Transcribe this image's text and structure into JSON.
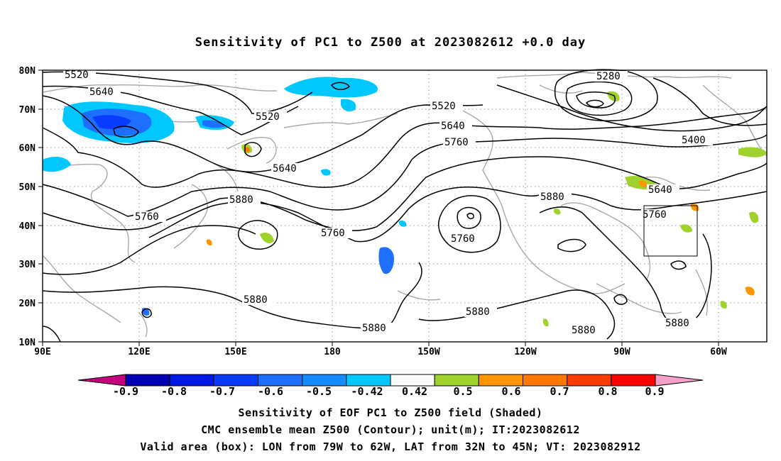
{
  "title": "Sensitivity of PC1 to Z500 at 2023082612 +0.0 day",
  "map": {
    "lat_labels": [
      "80N",
      "70N",
      "60N",
      "50N",
      "40N",
      "30N",
      "20N",
      "10N"
    ],
    "lon_labels": [
      "90E",
      "120E",
      "150E",
      "180",
      "150W",
      "120W",
      "90W",
      "60W"
    ],
    "contour_labels": [
      {
        "text": "5520",
        "id": "c1"
      },
      {
        "text": "5640",
        "id": "c2"
      },
      {
        "text": "5520",
        "id": "c3"
      },
      {
        "text": "5640",
        "id": "c4"
      },
      {
        "text": "5760",
        "id": "c5"
      },
      {
        "text": "5880",
        "id": "c6"
      },
      {
        "text": "5760",
        "id": "c7"
      },
      {
        "text": "5880",
        "id": "c8"
      },
      {
        "text": "5880",
        "id": "c9"
      },
      {
        "text": "5520",
        "id": "c10"
      },
      {
        "text": "5640",
        "id": "c11"
      },
      {
        "text": "5760",
        "id": "c12"
      },
      {
        "text": "5760",
        "id": "c13"
      },
      {
        "text": "5880",
        "id": "c14"
      },
      {
        "text": "5880",
        "id": "c15"
      },
      {
        "text": "5280",
        "id": "c16"
      },
      {
        "text": "5400",
        "id": "c17"
      },
      {
        "text": "5640",
        "id": "c18"
      },
      {
        "text": "5760",
        "id": "c19"
      },
      {
        "text": "5880",
        "id": "c20"
      },
      {
        "text": "5880",
        "id": "c21"
      }
    ],
    "valid_box": {
      "lon_from": "79W",
      "lon_to": "62W",
      "lat_from": "32N",
      "lat_to": "45N"
    }
  },
  "colorbar": {
    "labels": [
      "-0.9",
      "-0.8",
      "-0.7",
      "-0.6",
      "-0.5",
      "-0.42",
      "0.42",
      "0.5",
      "0.6",
      "0.7",
      "0.8",
      "0.9"
    ],
    "colors": [
      "#c4007f",
      "#0000b4",
      "#0018e6",
      "#0a3cff",
      "#1e6eff",
      "#148cff",
      "#00c8ff",
      "#ffffff",
      "#a0d22d",
      "#ff9600",
      "#ff7800",
      "#ff3c00",
      "#ff0000",
      "#f5a0c8"
    ]
  },
  "captions": {
    "line1": "Sensitivity of EOF PC1 to Z500 field (Shaded)",
    "line2": "CMC ensemble mean Z500 (Contour); unit(m); IT:2023082612",
    "line3": "Valid area (box): LON from 79W to 62W, LAT from 32N to 45N; VT: 2023082912"
  }
}
